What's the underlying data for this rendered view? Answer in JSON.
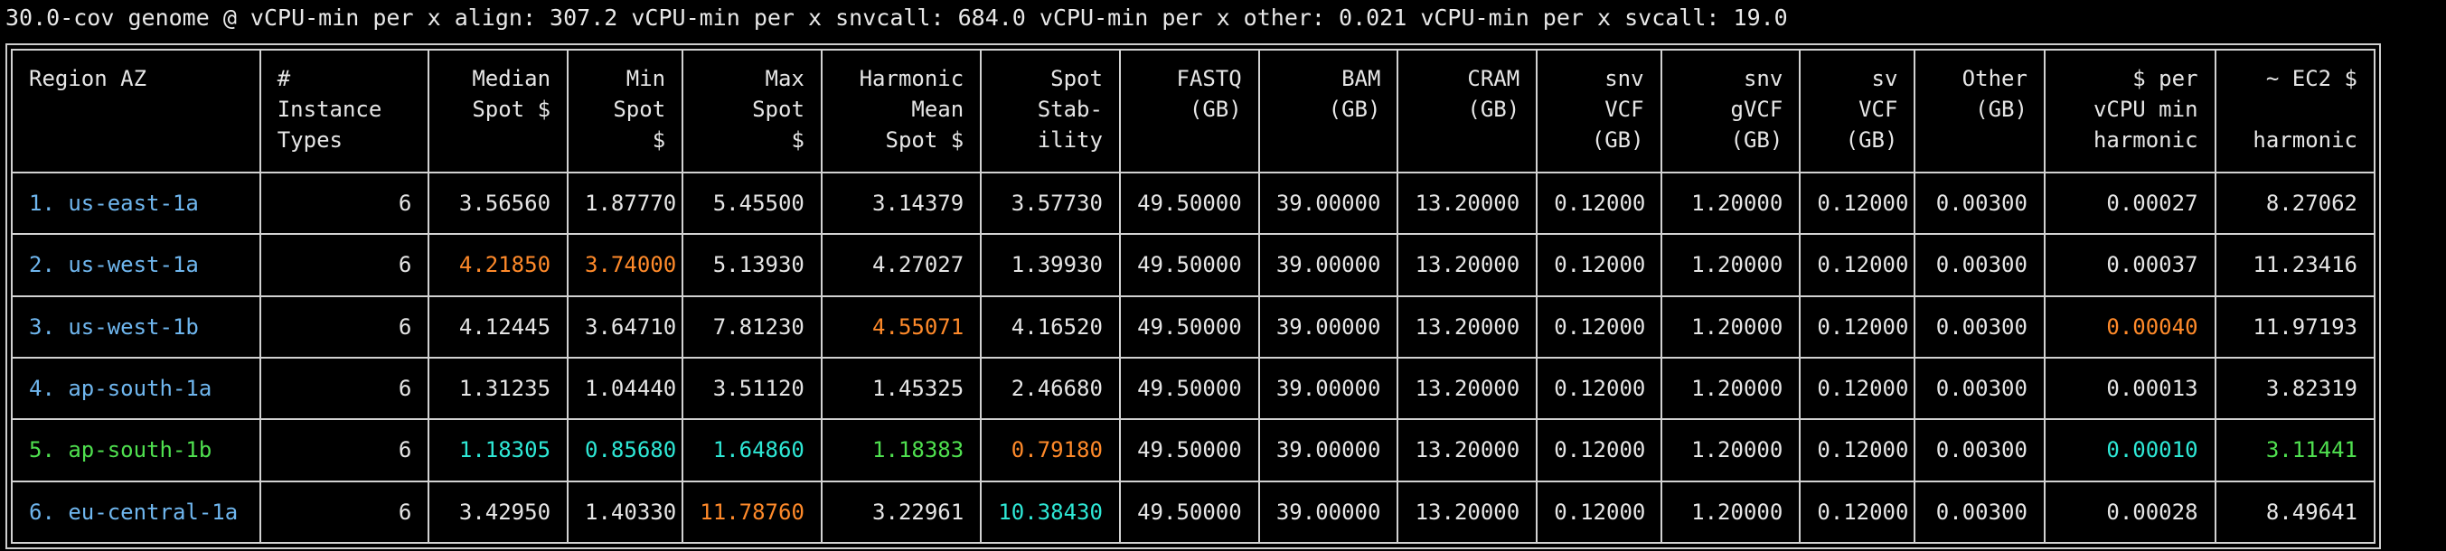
{
  "header": {
    "text": "30.0-cov genome @ vCPU-min per x align: 307.2 vCPU-min per x snvcall: 684.0 vCPU-min per x other: 0.021 vCPU-min per x svcall: 19.0"
  },
  "colors": {
    "background": "#000000",
    "text": "#e6e6e6",
    "region_default": "#6fb6ee",
    "best_region": "#4fe04f",
    "highlight_orange": "#ff8a2a",
    "highlight_cyan": "#2ee8d6",
    "highlight_green": "#4fe04f"
  },
  "table": {
    "columns": [
      "Region AZ",
      "#\nInstance\nTypes",
      "Median\nSpot $",
      "Min\nSpot\n$",
      "Max\nSpot\n$",
      "Harmonic\nMean\nSpot $",
      "Spot\nStab-\nility",
      "FASTQ\n(GB)",
      "BAM\n(GB)",
      "CRAM\n(GB)",
      "snv\nVCF\n(GB)",
      "snv\ngVCF\n(GB)",
      "sv\nVCF\n(GB)",
      "Other\n(GB)",
      "$ per\nvCPU min\nharmonic",
      "~ EC2 $\n\nharmonic"
    ],
    "rows": [
      {
        "cells": [
          "1. us-east-1a",
          "6",
          "3.56560",
          "1.87770",
          "5.45500",
          "3.14379",
          "3.57730",
          "49.50000",
          "39.00000",
          "13.20000",
          "0.12000",
          "1.20000",
          "0.12000",
          "0.00300",
          "0.00027",
          "8.27062"
        ],
        "highlights": {}
      },
      {
        "cells": [
          "2. us-west-1a",
          "6",
          "4.21850",
          "3.74000",
          "5.13930",
          "4.27027",
          "1.39930",
          "49.50000",
          "39.00000",
          "13.20000",
          "0.12000",
          "1.20000",
          "0.12000",
          "0.00300",
          "0.00037",
          "11.23416"
        ],
        "highlights": {
          "2": "orange",
          "3": "orange"
        }
      },
      {
        "cells": [
          "3. us-west-1b",
          "6",
          "4.12445",
          "3.64710",
          "7.81230",
          "4.55071",
          "4.16520",
          "49.50000",
          "39.00000",
          "13.20000",
          "0.12000",
          "1.20000",
          "0.12000",
          "0.00300",
          "0.00040",
          "11.97193"
        ],
        "highlights": {
          "5": "orange",
          "14": "orange"
        }
      },
      {
        "cells": [
          "4. ap-south-1a",
          "6",
          "1.31235",
          "1.04440",
          "3.51120",
          "1.45325",
          "2.46680",
          "49.50000",
          "39.00000",
          "13.20000",
          "0.12000",
          "1.20000",
          "0.12000",
          "0.00300",
          "0.00013",
          "3.82319"
        ],
        "highlights": {}
      },
      {
        "cells": [
          "5. ap-south-1b",
          "6",
          "1.18305",
          "0.85680",
          "1.64860",
          "1.18383",
          "0.79180",
          "49.50000",
          "39.00000",
          "13.20000",
          "0.12000",
          "1.20000",
          "0.12000",
          "0.00300",
          "0.00010",
          "3.11441"
        ],
        "highlights": {
          "2": "cyan",
          "3": "cyan",
          "4": "cyan",
          "5": "green",
          "6": "orange",
          "14": "cyan",
          "15": "green"
        },
        "best": true
      },
      {
        "cells": [
          "6. eu-central-1a",
          "6",
          "3.42950",
          "1.40330",
          "11.78760",
          "3.22961",
          "10.38430",
          "49.50000",
          "39.00000",
          "13.20000",
          "0.12000",
          "1.20000",
          "0.12000",
          "0.00300",
          "0.00028",
          "8.49641"
        ],
        "highlights": {
          "4": "orange",
          "6": "cyan"
        }
      }
    ]
  }
}
